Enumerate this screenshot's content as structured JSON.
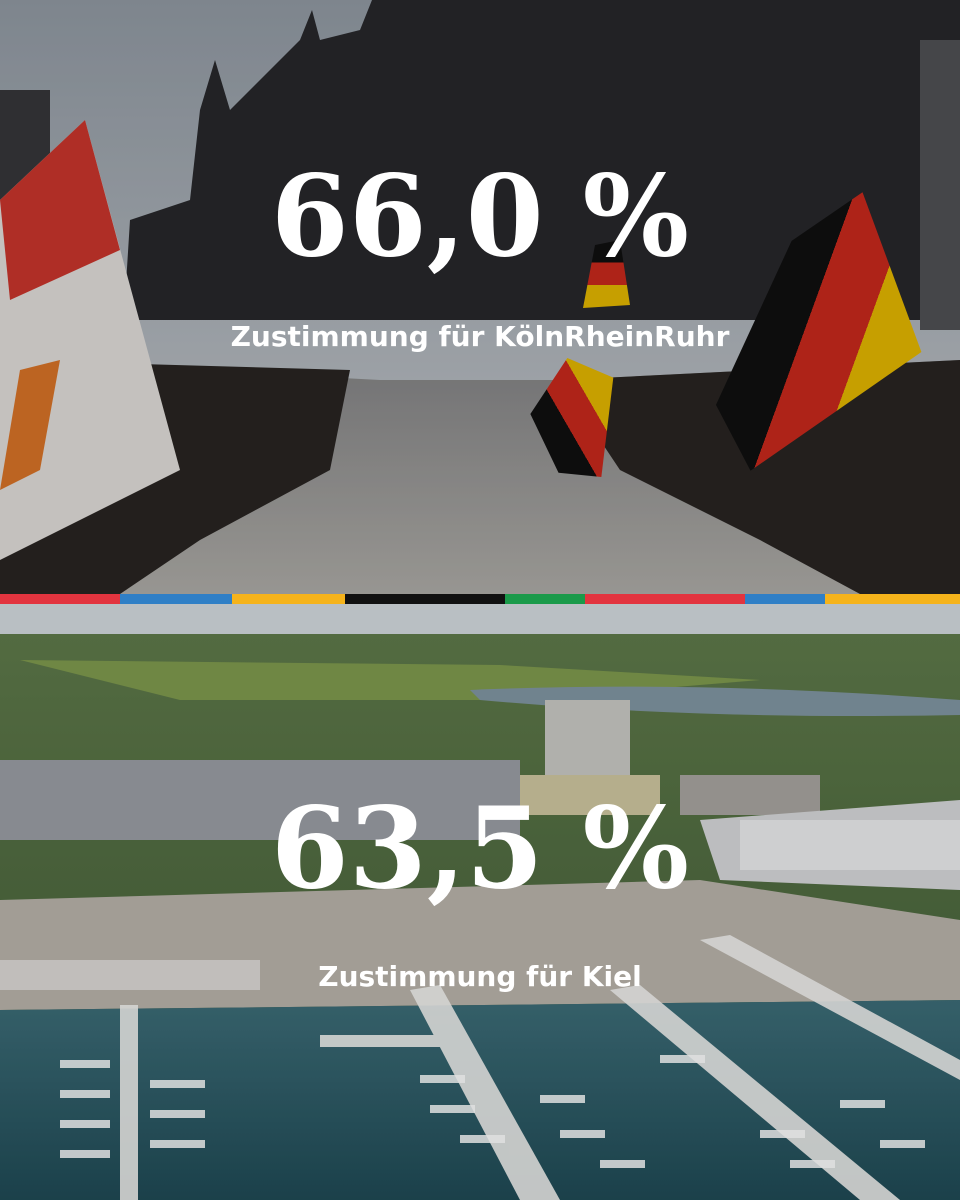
{
  "panels": [
    {
      "figure": "66,0 %",
      "caption": "Zustimmung für KölnRheinRuhr"
    },
    {
      "figure": "63,5 %",
      "caption": "Zustimmung für Kiel"
    }
  ]
}
